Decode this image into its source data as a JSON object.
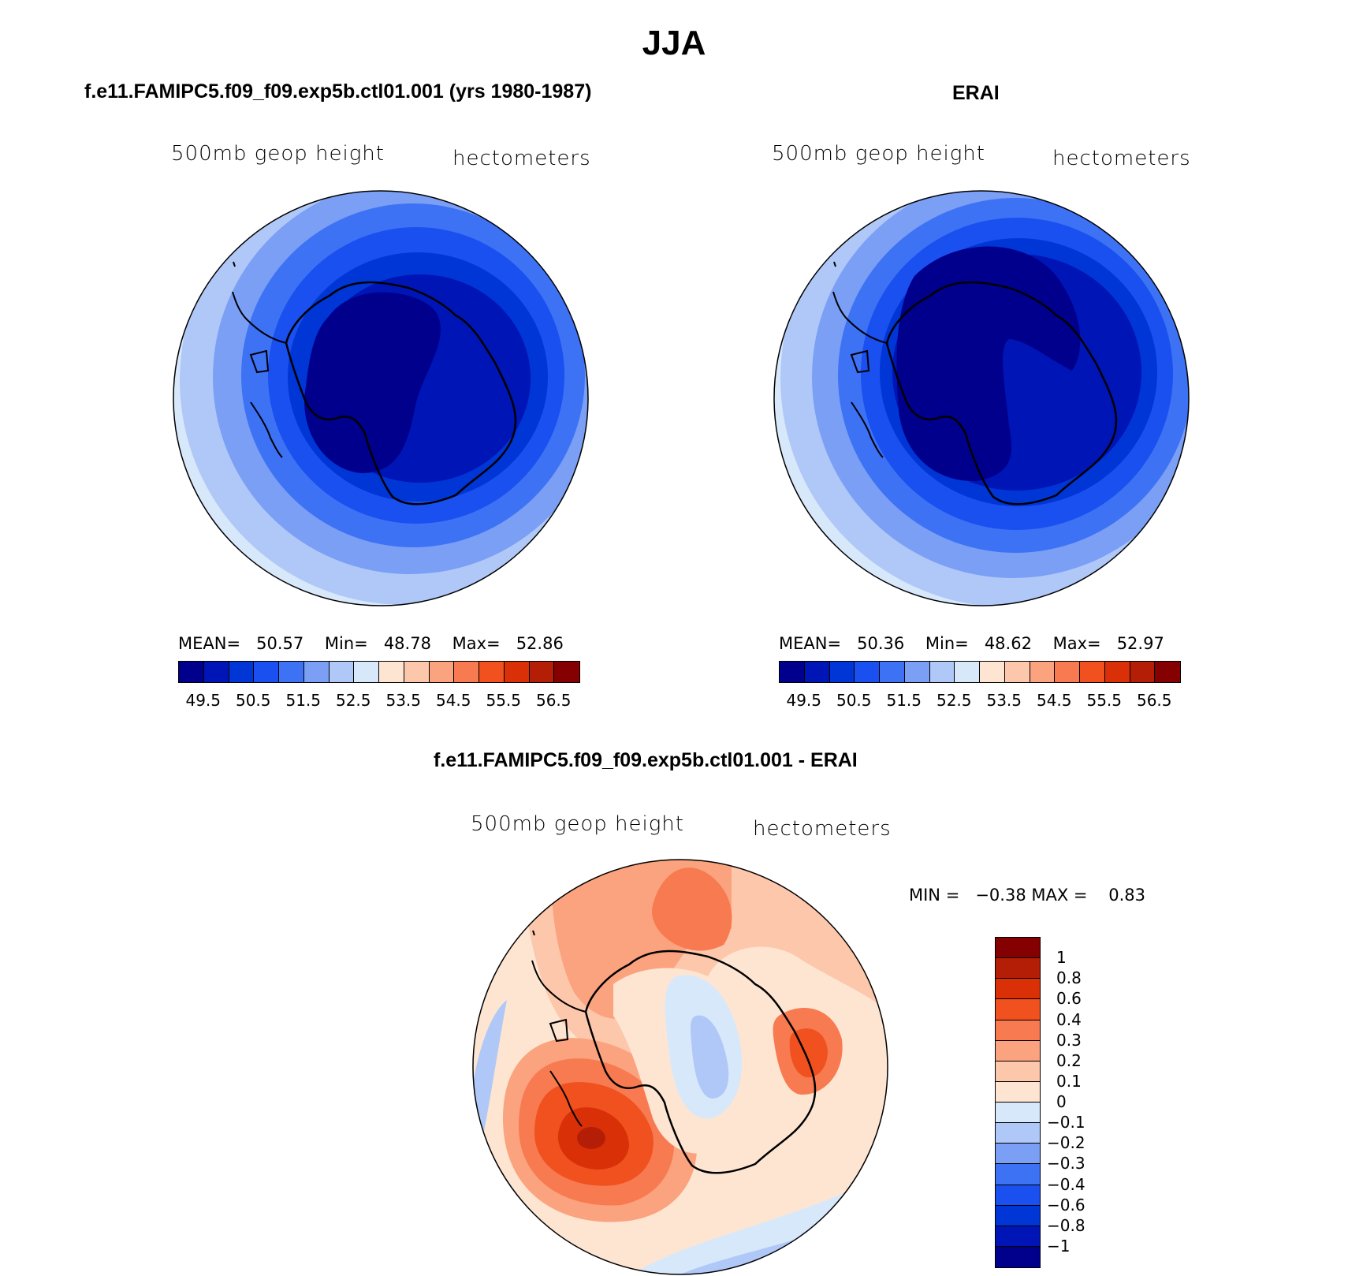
{
  "figure": {
    "title": "JJA",
    "left_panel": {
      "title": "f.e11.FAMIPC5.f09_f09.exp5b.ctl01.001 (yrs 1980-1987)",
      "variable_label": "500mb geop height",
      "units_label": "hectometers",
      "stats": {
        "mean_label": "MEAN=",
        "mean": "50.57",
        "min_label": "Min=",
        "min": "48.78",
        "max_label": "Max=",
        "max": "52.86"
      }
    },
    "right_panel": {
      "title": "ERAI",
      "variable_label": "500mb geop height",
      "units_label": "hectometers",
      "stats": {
        "mean_label": "MEAN=",
        "mean": "50.36",
        "min_label": "Min=",
        "min": "48.62",
        "max_label": "Max=",
        "max": "52.97"
      }
    },
    "diff_panel": {
      "title": "f.e11.FAMIPC5.f09_f09.exp5b.ctl01.001 - ERAI",
      "variable_label": "500mb geop height",
      "units_label": "hectometers",
      "stats": {
        "min_label": "MIN =",
        "min": "−0.38",
        "max_label": "MAX =",
        "max": "0.83"
      }
    },
    "colorbar_main": {
      "colors": [
        "#00008c",
        "#0015b5",
        "#0035d6",
        "#1a4ff0",
        "#3d72f5",
        "#7a9ff5",
        "#b0c8f8",
        "#d8e8fb",
        "#fde5d2",
        "#fcc7ab",
        "#fba37e",
        "#f77a50",
        "#f0511f",
        "#d93008",
        "#b51e06",
        "#850000"
      ],
      "tick_labels": [
        "49.5",
        "50.5",
        "51.5",
        "52.5",
        "53.5",
        "54.5",
        "55.5",
        "56.5"
      ]
    },
    "colorbar_diff": {
      "colors": [
        "#850000",
        "#b51e06",
        "#d93008",
        "#f0511f",
        "#f77a50",
        "#fba37e",
        "#fcc7ab",
        "#fde5d2",
        "#d8e8fb",
        "#b0c8f8",
        "#7a9ff5",
        "#3d72f5",
        "#1a4ff0",
        "#0035d6",
        "#0015b5",
        "#00008c"
      ],
      "tick_labels": [
        "1",
        "0.8",
        "0.6",
        "0.4",
        "0.3",
        "0.2",
        "0.1",
        "0",
        "−0.1",
        "−0.2",
        "−0.3",
        "−0.4",
        "−0.6",
        "−0.8",
        "−1"
      ]
    }
  }
}
